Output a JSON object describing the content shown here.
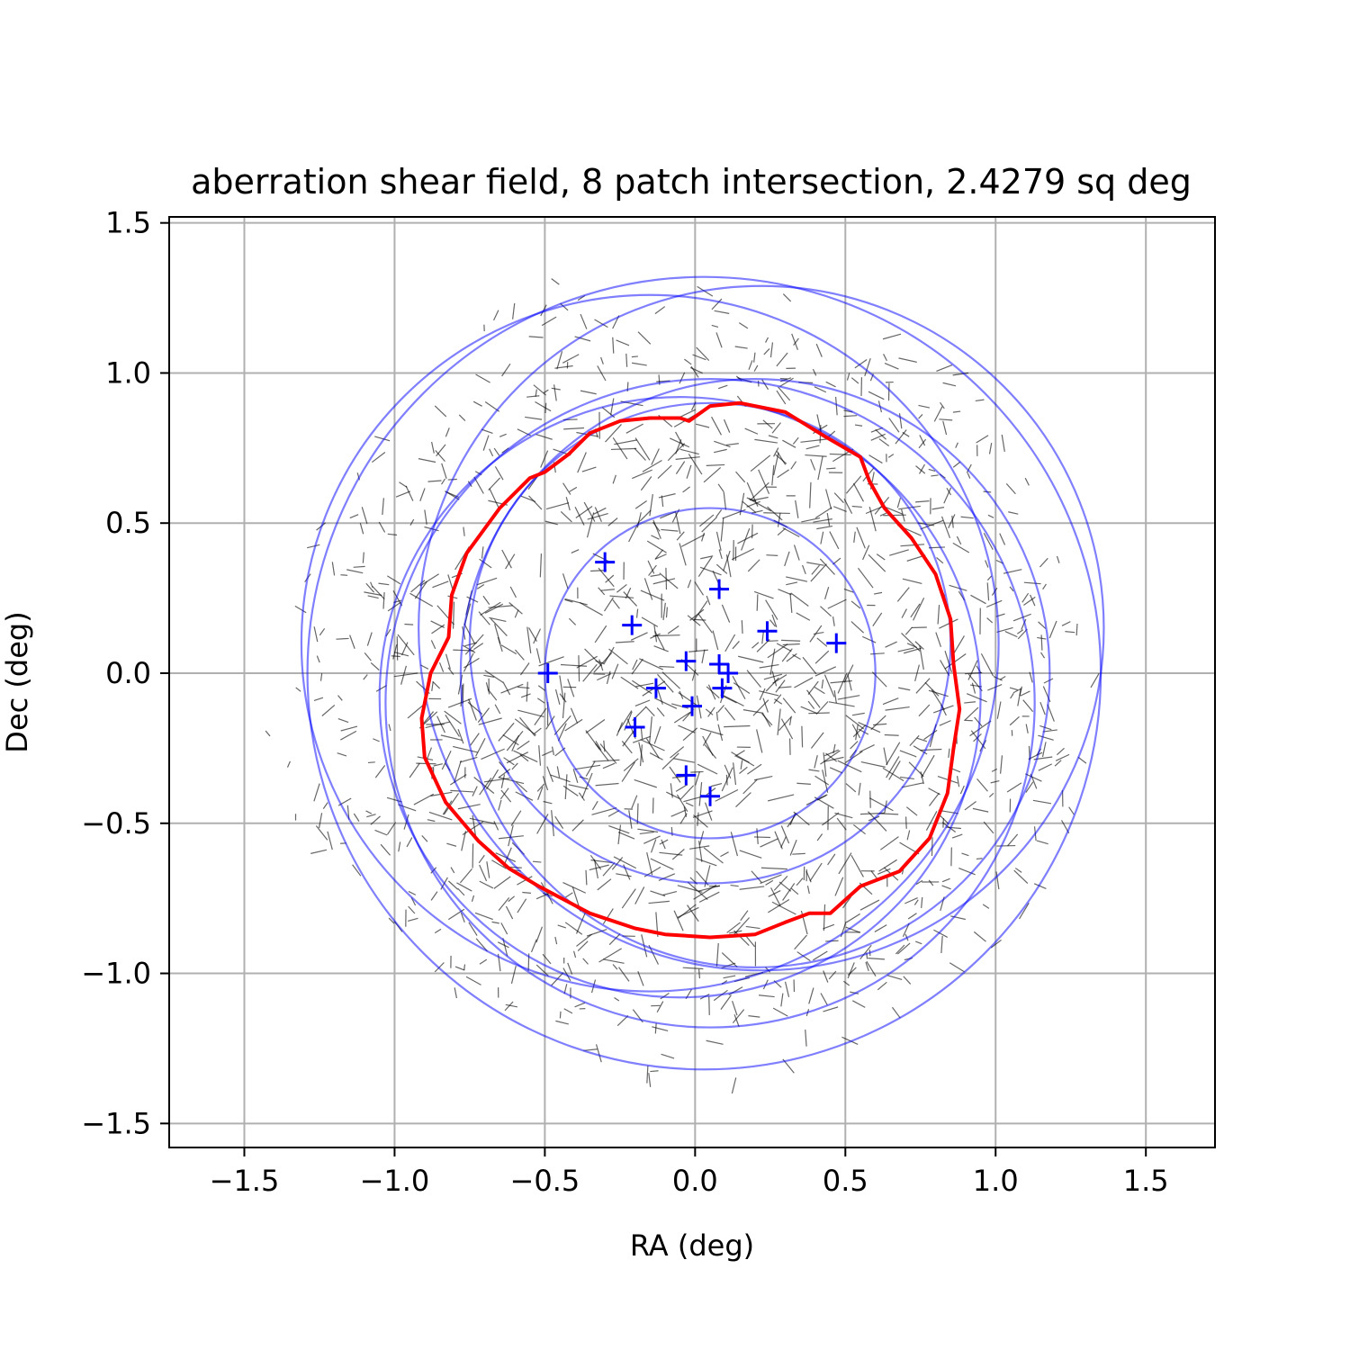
{
  "chart_data": {
    "type": "scatter",
    "title": "aberration shear field, 8 patch intersection, 2.4279 sq deg",
    "xlabel": "RA (deg)",
    "ylabel": "Dec (deg)",
    "xlim": [
      -1.75,
      1.73
    ],
    "ylim": [
      -1.58,
      1.52
    ],
    "xticks": [
      -1.5,
      -1.0,
      -0.5,
      0.0,
      0.5,
      1.0,
      1.5
    ],
    "yticks": [
      -1.5,
      -1.0,
      -0.5,
      0.0,
      0.5,
      1.0,
      1.5
    ],
    "xtick_labels": [
      "−1.5",
      "−1.0",
      "−0.5",
      "0.0",
      "0.5",
      "1.0",
      "1.5"
    ],
    "ytick_labels": [
      "−1.5",
      "−1.0",
      "−0.5",
      "0.0",
      "0.5",
      "1.0",
      "1.5"
    ],
    "grid": true,
    "colors": {
      "pointings": "#0000ff",
      "patch_circles": "#0000ff",
      "intersection": "#ff0000",
      "whiskers": "#000000",
      "grid": "#b0b0b0"
    },
    "pointings": [
      [
        -0.3,
        0.37
      ],
      [
        0.08,
        0.28
      ],
      [
        -0.21,
        0.16
      ],
      [
        0.24,
        0.14
      ],
      [
        0.47,
        0.1
      ],
      [
        -0.03,
        0.04
      ],
      [
        0.08,
        0.03
      ],
      [
        0.11,
        0.0
      ],
      [
        -0.49,
        0.0
      ],
      [
        -0.13,
        -0.05
      ],
      [
        0.09,
        -0.05
      ],
      [
        -0.01,
        -0.11
      ],
      [
        -0.2,
        -0.18
      ],
      [
        -0.03,
        -0.34
      ],
      [
        0.05,
        -0.41
      ]
    ],
    "patch_circles": [
      {
        "cx": -0.15,
        "cy": 0.1,
        "r": 1.16
      },
      {
        "cx": 0.03,
        "cy": 0.0,
        "r": 1.32
      },
      {
        "cx": 0.22,
        "cy": 0.15,
        "r": 1.14
      },
      {
        "cx": 0.05,
        "cy": -0.1,
        "r": 1.08
      },
      {
        "cx": -0.05,
        "cy": -0.08,
        "r": 1.0
      },
      {
        "cx": 0.2,
        "cy": 0.0,
        "r": 0.98
      },
      {
        "cx": 0.05,
        "cy": 0.1,
        "r": 0.8
      },
      {
        "cx": 0.05,
        "cy": 0.0,
        "r": 0.55
      }
    ],
    "intersection_polygon": [
      [
        -0.02,
        0.84
      ],
      [
        0.05,
        0.89
      ],
      [
        0.15,
        0.9
      ],
      [
        0.3,
        0.87
      ],
      [
        0.43,
        0.79
      ],
      [
        0.55,
        0.72
      ],
      [
        0.58,
        0.64
      ],
      [
        0.63,
        0.55
      ],
      [
        0.72,
        0.45
      ],
      [
        0.8,
        0.33
      ],
      [
        0.85,
        0.18
      ],
      [
        0.86,
        0.03
      ],
      [
        0.88,
        -0.12
      ],
      [
        0.86,
        -0.25
      ],
      [
        0.84,
        -0.4
      ],
      [
        0.78,
        -0.55
      ],
      [
        0.68,
        -0.66
      ],
      [
        0.55,
        -0.71
      ],
      [
        0.45,
        -0.8
      ],
      [
        0.38,
        -0.8
      ],
      [
        0.3,
        -0.83
      ],
      [
        0.2,
        -0.87
      ],
      [
        0.05,
        -0.88
      ],
      [
        -0.1,
        -0.87
      ],
      [
        -0.2,
        -0.85
      ],
      [
        -0.35,
        -0.8
      ],
      [
        -0.52,
        -0.71
      ],
      [
        -0.62,
        -0.65
      ],
      [
        -0.72,
        -0.56
      ],
      [
        -0.83,
        -0.43
      ],
      [
        -0.9,
        -0.28
      ],
      [
        -0.91,
        -0.15
      ],
      [
        -0.88,
        0.0
      ],
      [
        -0.82,
        0.12
      ],
      [
        -0.81,
        0.26
      ],
      [
        -0.76,
        0.4
      ],
      [
        -0.65,
        0.55
      ],
      [
        -0.55,
        0.65
      ],
      [
        -0.5,
        0.67
      ],
      [
        -0.42,
        0.73
      ],
      [
        -0.35,
        0.8
      ],
      [
        -0.25,
        0.84
      ],
      [
        -0.15,
        0.85
      ],
      [
        -0.05,
        0.85
      ]
    ],
    "whiskers": {
      "description_count": 1500,
      "seed": 7,
      "radius_max_deg": 1.45,
      "length_max_deg": 0.09
    }
  }
}
